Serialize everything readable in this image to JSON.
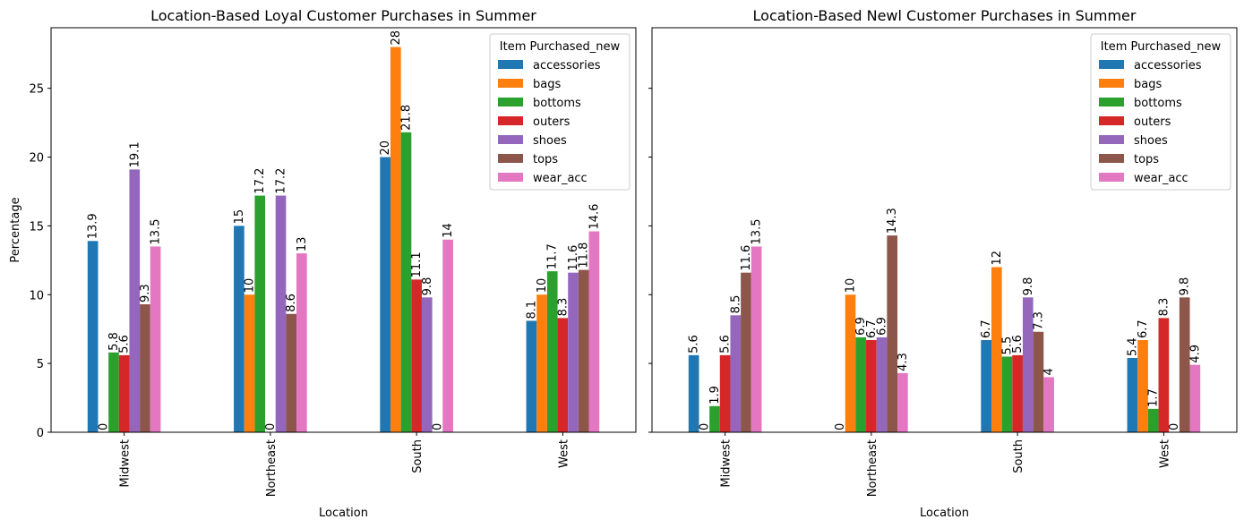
{
  "chart_data": [
    {
      "type": "bar",
      "title": "Location-Based Loyal Customer Purchases in Summer",
      "xlabel": "Location",
      "ylabel": "Percentage",
      "ylim": [
        0,
        29.4
      ],
      "yticks": [
        0,
        5,
        10,
        15,
        20,
        25
      ],
      "categories": [
        "Midwest",
        "Northeast",
        "South",
        "West"
      ],
      "legend": {
        "title": "Item Purchased_new",
        "placement": "top-right"
      },
      "series": [
        {
          "name": "accessories",
          "color": "#1f77b4",
          "values": [
            13.9,
            15,
            20,
            8.1
          ]
        },
        {
          "name": "bags",
          "color": "#ff7f0e",
          "values": [
            0,
            10,
            28,
            10
          ]
        },
        {
          "name": "bottoms",
          "color": "#2ca02c",
          "values": [
            5.8,
            17.2,
            21.8,
            11.7
          ]
        },
        {
          "name": "outers",
          "color": "#d62728",
          "values": [
            5.6,
            0,
            11.1,
            8.3
          ]
        },
        {
          "name": "shoes",
          "color": "#9467bd",
          "values": [
            19.1,
            17.2,
            9.8,
            11.6
          ]
        },
        {
          "name": "tops",
          "color": "#8c564b",
          "values": [
            9.3,
            8.6,
            0,
            11.8
          ]
        },
        {
          "name": "wear_acc",
          "color": "#e377c2",
          "values": [
            13.5,
            13,
            14,
            14.6
          ]
        }
      ]
    },
    {
      "type": "bar",
      "title": "Location-Based Newl Customer Purchases in Summer",
      "xlabel": "Location",
      "ylabel": "",
      "ylim": [
        0,
        29.4
      ],
      "yticks": [
        0,
        5,
        10,
        15,
        20,
        25
      ],
      "categories": [
        "Midwest",
        "Northeast",
        "South",
        "West"
      ],
      "legend": {
        "title": "Item Purchased_new",
        "placement": "top-right"
      },
      "series": [
        {
          "name": "accessories",
          "color": "#1f77b4",
          "values": [
            5.6,
            0,
            6.7,
            5.4
          ]
        },
        {
          "name": "bags",
          "color": "#ff7f0e",
          "values": [
            0,
            10,
            12,
            6.7
          ]
        },
        {
          "name": "bottoms",
          "color": "#2ca02c",
          "values": [
            1.9,
            6.9,
            5.5,
            1.7
          ]
        },
        {
          "name": "outers",
          "color": "#d62728",
          "values": [
            5.6,
            6.7,
            5.6,
            8.3
          ]
        },
        {
          "name": "shoes",
          "color": "#9467bd",
          "values": [
            8.5,
            6.9,
            9.8,
            0
          ]
        },
        {
          "name": "tops",
          "color": "#8c564b",
          "values": [
            11.6,
            14.3,
            7.3,
            9.8
          ]
        },
        {
          "name": "wear_acc",
          "color": "#e377c2",
          "values": [
            13.5,
            4.3,
            4,
            4.9
          ]
        }
      ]
    }
  ]
}
